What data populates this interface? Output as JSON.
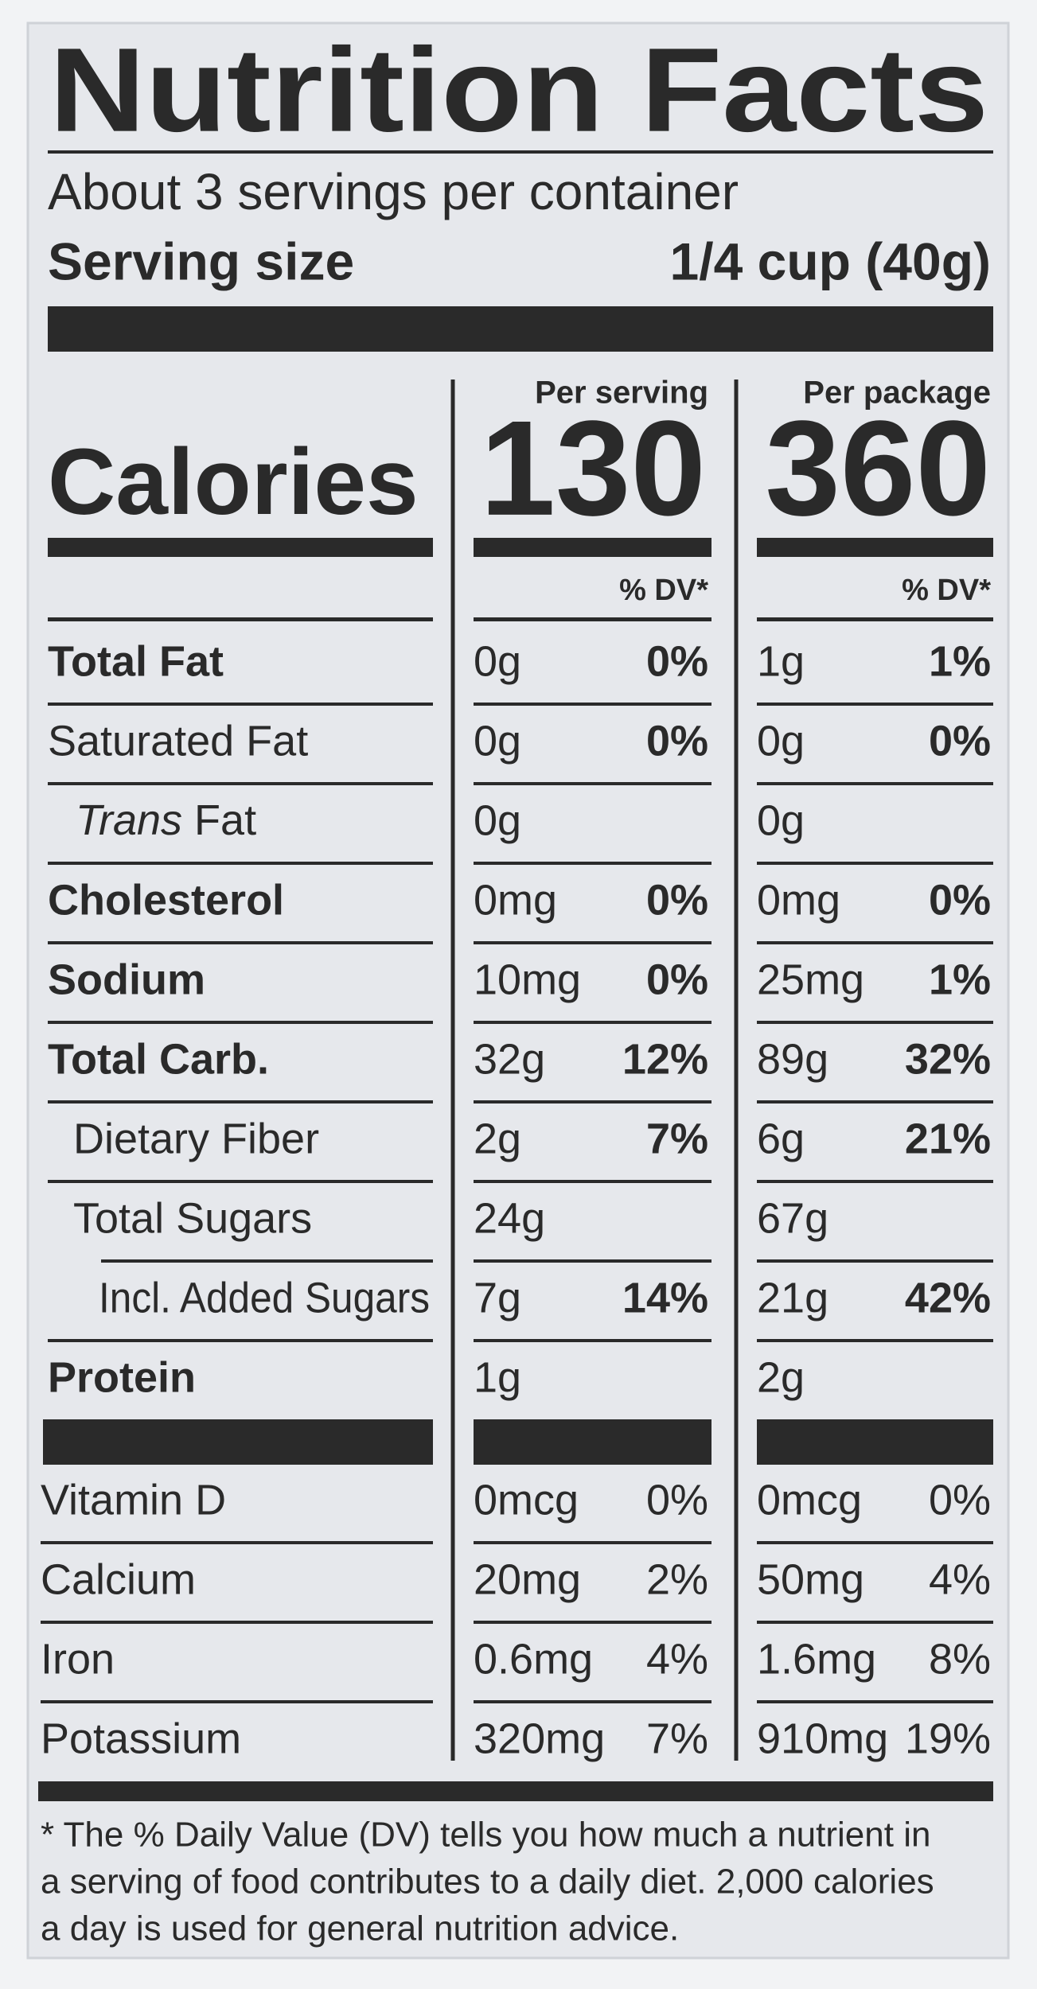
{
  "title": "Nutrition Facts",
  "servings": "About 3 servings per container",
  "serving_size": {
    "label": "Serving size",
    "value": "1/4 cup (40g)"
  },
  "columns": [
    "Per serving",
    "Per package"
  ],
  "calories": {
    "label": "Calories",
    "per_serving": 130,
    "per_package": 360
  },
  "dv_header": "% DV*",
  "nutrients": [
    {
      "label": "Total Fat",
      "serving": [
        "0g",
        "0%"
      ],
      "package": [
        "1g",
        "1%"
      ]
    },
    {
      "label": "Saturated Fat",
      "serving": [
        "0g",
        "0%"
      ],
      "package": [
        "0g",
        "0%"
      ]
    },
    {
      "label_italic": "Trans",
      "label": "Fat",
      "serving": [
        "0g"
      ],
      "package": [
        "0g"
      ]
    },
    {
      "label": "Cholesterol",
      "serving": [
        "0mg",
        "0%"
      ],
      "package": [
        "0mg",
        "0%"
      ]
    },
    {
      "label": "Sodium",
      "serving": [
        "10mg",
        "0%"
      ],
      "package": [
        "25mg",
        "1%"
      ]
    },
    {
      "label": "Total Carb.",
      "serving": [
        "32g",
        "12%"
      ],
      "package": [
        "89g",
        "32%"
      ]
    },
    {
      "label": "Dietary Fiber",
      "serving": [
        "2g",
        "7%"
      ],
      "package": [
        "6g",
        "21%"
      ]
    },
    {
      "label": "Total Sugars",
      "serving": [
        "24g"
      ],
      "package": [
        "67g"
      ]
    },
    {
      "label": "Incl. Added Sugars",
      "serving": [
        "7g",
        "14%"
      ],
      "package": [
        "21g",
        "42%"
      ]
    },
    {
      "label": "Protein",
      "serving": [
        "1g"
      ],
      "package": [
        "2g"
      ]
    }
  ],
  "vitamins": [
    {
      "label": "Vitamin D",
      "serving": [
        "0mcg",
        "0%"
      ],
      "package": [
        "0mcg",
        "0%"
      ]
    },
    {
      "label": "Calcium",
      "serving": [
        "20mg",
        "2%"
      ],
      "package": [
        "50mg",
        "4%"
      ]
    },
    {
      "label": "Iron",
      "serving": [
        "0.6mg",
        "4%"
      ],
      "package": [
        "1.6mg",
        "8%"
      ]
    },
    {
      "label": "Potassium",
      "serving": [
        "320mg",
        "7%"
      ],
      "package": [
        "910mg",
        "19%"
      ]
    }
  ],
  "footnote": [
    "* The % Daily Value (DV) tells you how much a nutrient in",
    "a serving of food contributes to a daily diet. 2,000 calories",
    "a day is used for general nutrition advice."
  ]
}
